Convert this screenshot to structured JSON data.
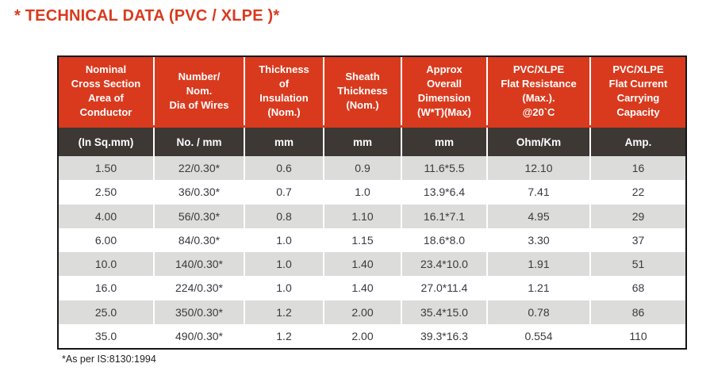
{
  "title": "* TECHNICAL DATA (PVC / XLPE )*",
  "footnote": "*As per IS:8130:1994",
  "colors": {
    "accent": "#d93a1e",
    "header_dark": "#3d3834",
    "stripe": "#dcdcda",
    "border": "#151515",
    "datatext": "#3a3a3a"
  },
  "table": {
    "columns": [
      {
        "header": "Nominal\nCross Section\nArea of\nConductor",
        "unit": "(In Sq.mm)"
      },
      {
        "header": "Number/\nNom.\nDia of Wires",
        "unit": "No. / mm"
      },
      {
        "header": "Thickness\nof\nInsulation\n(Nom.)",
        "unit": "mm"
      },
      {
        "header": "Sheath\nThickness\n(Nom.)",
        "unit": "mm"
      },
      {
        "header": "Approx\nOverall\nDimension\n(W*T)(Max)",
        "unit": "mm"
      },
      {
        "header": "PVC/XLPE\nFlat Resistance\n(Max.).\n@20`C",
        "unit": "Ohm/Km"
      },
      {
        "header": "PVC/XLPE\nFlat Current\nCarrying\nCapacity",
        "unit": "Amp."
      }
    ],
    "rows": [
      [
        "1.50",
        "22/0.30*",
        "0.6",
        "0.9",
        "11.6*5.5",
        "12.10",
        "16"
      ],
      [
        "2.50",
        "36/0.30*",
        "0.7",
        "1.0",
        "13.9*6.4",
        "7.41",
        "22"
      ],
      [
        "4.00",
        "56/0.30*",
        "0.8",
        "1.10",
        "16.1*7.1",
        "4.95",
        "29"
      ],
      [
        "6.00",
        "84/0.30*",
        "1.0",
        "1.15",
        "18.6*8.0",
        "3.30",
        "37"
      ],
      [
        "10.0",
        "140/0.30*",
        "1.0",
        "1.40",
        "23.4*10.0",
        "1.91",
        "51"
      ],
      [
        "16.0",
        "224/0.30*",
        "1.0",
        "1.40",
        "27.0*11.4",
        "1.21",
        "68"
      ],
      [
        "25.0",
        "350/0.30*",
        "1.2",
        "2.00",
        "35.4*15.0",
        "0.78",
        "86"
      ],
      [
        "35.0",
        "490/0.30*",
        "1.2",
        "2.00",
        "39.3*16.3",
        "0.554",
        "110"
      ]
    ]
  }
}
